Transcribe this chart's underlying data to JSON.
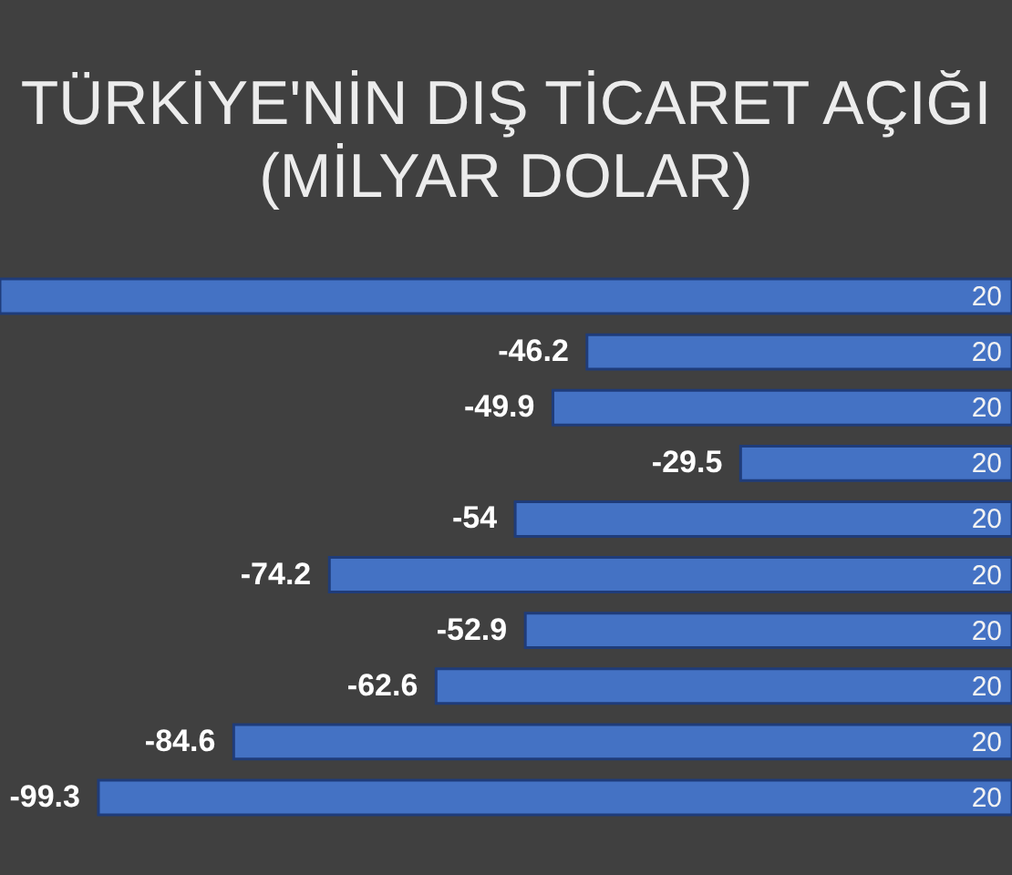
{
  "chart_data": {
    "type": "bar",
    "orientation": "horizontal",
    "title": "TÜRKİYE'NİN DIŞ TİCARET AÇIĞI",
    "subtitle": "(MİLYAR DOLAR)",
    "categories": [
      "20",
      "20",
      "20",
      "20",
      "20",
      "20",
      "20",
      "20",
      "20",
      "20"
    ],
    "values": [
      -110,
      -46.2,
      -49.9,
      -29.5,
      -54,
      -74.2,
      -52.9,
      -62.6,
      -84.6,
      -99.3
    ],
    "value_labels": [
      null,
      "-46.2",
      "-49.9",
      "-29.5",
      "-54",
      "-74.2",
      "-52.9",
      "-62.6",
      "-84.6",
      "-99.3"
    ],
    "color": "#4472c4"
  }
}
